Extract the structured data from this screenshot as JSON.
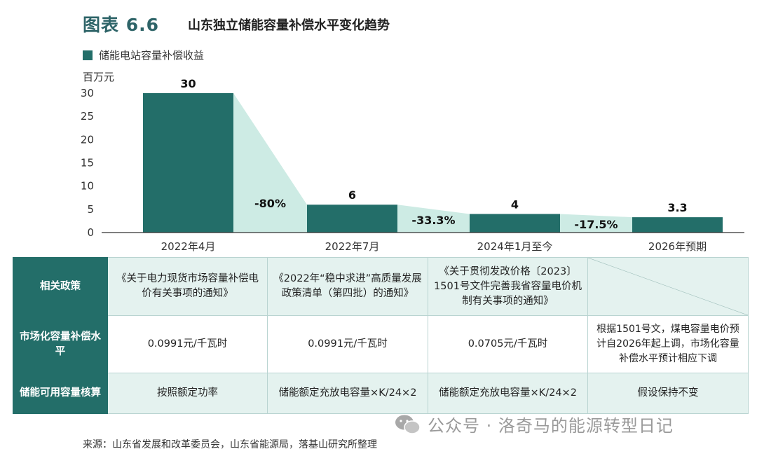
{
  "figure": {
    "label": "图表 6.6",
    "title": "山东独立储能容量补偿水平变化趋势"
  },
  "chart_data": {
    "type": "bar",
    "title": "山东独立储能容量补偿水平变化趋势",
    "ylabel": "百万元",
    "xlabel": "",
    "ylim": [
      0,
      30
    ],
    "yticks": [
      0,
      5,
      10,
      15,
      20,
      25,
      30
    ],
    "categories": [
      "2022年4月",
      "2022年7月",
      "2024年1月至今",
      "2026年预期"
    ],
    "series": [
      {
        "name": "储能电站容量补偿收益",
        "values": [
          30,
          6,
          4,
          3.3
        ]
      }
    ],
    "value_labels": [
      "30",
      "6",
      "4",
      "3.3"
    ],
    "changes": [
      "-80%",
      "-33.3%",
      "-17.5%"
    ],
    "legend": "top-left",
    "colors": {
      "bar": "#236e69",
      "change_area": "#cdebe4",
      "axis": "#333333"
    }
  },
  "table": {
    "row_headers": [
      "相关政策",
      "市场化容量补偿水平",
      "储能可用容量核算"
    ],
    "policy_row": [
      "《关于电力现货市场容量补偿电价有关事项的通知》",
      "《2022年“稳中求进”高质量发展政策清单（第四批）的通知》",
      "《关于贯彻发改价格〔2023〕1501号文件完善我省容量电价机制有关事项的通知》"
    ],
    "level_row": [
      "0.0991元/千瓦时",
      "0.0991元/千瓦时",
      "0.0705元/千瓦时",
      "根据1501号文，煤电容量电价预计自2026年起上调，市场化容量补偿水平预计相应下调"
    ],
    "capacity_row": [
      "按照额定功率",
      "储能额定充放电容量×K/24×2",
      "储能额定充放电容量×K/24×2",
      "假设保持不变"
    ]
  },
  "source": "来源：山东省发展和改革委员会，山东省能源局，落基山研究所整理",
  "watermark": "公众号 · 洛奇马的能源转型日记"
}
